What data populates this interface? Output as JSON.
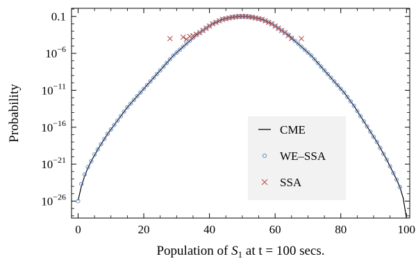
{
  "chart_data": {
    "type": "scatter",
    "xlabel": {
      "prefix": "Population of ",
      "var": "S",
      "sub": "1",
      "suffix": " at t = 100 secs."
    },
    "ylabel": "Probability",
    "x_range": [
      -2,
      101
    ],
    "y_scale": "log",
    "y_range_log10": [
      -28.3,
      0.1
    ],
    "x_ticks": [
      0,
      20,
      40,
      60,
      80,
      100
    ],
    "y_ticks": [
      {
        "log10": -1,
        "label": "0.1"
      },
      {
        "log10": -6,
        "label": "10",
        "exp": "−6"
      },
      {
        "log10": -11,
        "label": "10",
        "exp": "−11"
      },
      {
        "log10": -16,
        "label": "10",
        "exp": "−16"
      },
      {
        "log10": -21,
        "label": "10",
        "exp": "−21"
      },
      {
        "log10": -26,
        "label": "10",
        "exp": "−26"
      }
    ],
    "grid": false,
    "legend_position": "right-center",
    "series": [
      {
        "name": "CME",
        "kind": "line",
        "color": "#000000",
        "x": [
          0,
          1,
          2,
          3,
          4,
          5,
          6,
          7,
          8,
          9,
          10,
          11,
          12,
          13,
          14,
          15,
          16,
          17,
          18,
          19,
          20,
          21,
          22,
          23,
          24,
          25,
          26,
          27,
          28,
          29,
          30,
          31,
          32,
          33,
          34,
          35,
          36,
          37,
          38,
          39,
          40,
          41,
          42,
          43,
          44,
          45,
          46,
          47,
          48,
          49,
          50,
          51,
          52,
          53,
          54,
          55,
          56,
          57,
          58,
          59,
          60,
          61,
          62,
          63,
          64,
          65,
          66,
          67,
          68,
          69,
          70,
          71,
          72,
          73,
          74,
          75,
          76,
          77,
          78,
          79,
          80,
          81,
          82,
          83,
          84,
          85,
          86,
          87,
          88,
          89,
          90,
          91,
          92,
          93,
          94,
          95,
          96,
          97,
          98,
          99,
          100
        ],
        "log10_prob": [
          -25.9,
          -24.0,
          -22.6,
          -21.5,
          -20.6,
          -19.8,
          -19.0,
          -18.3,
          -17.6,
          -16.9,
          -16.3,
          -15.7,
          -15.1,
          -14.5,
          -13.9,
          -13.3,
          -12.8,
          -12.3,
          -11.8,
          -11.3,
          -10.8,
          -10.3,
          -9.8,
          -9.3,
          -8.8,
          -8.3,
          -7.8,
          -7.3,
          -6.8,
          -6.3,
          -5.9,
          -5.5,
          -5.1,
          -4.7,
          -4.3,
          -3.9,
          -3.5,
          -3.2,
          -2.9,
          -2.6,
          -2.3,
          -2.0,
          -1.8,
          -1.6,
          -1.4,
          -1.3,
          -1.2,
          -1.1,
          -1.05,
          -1.0,
          -1.0,
          -1.0,
          -1.05,
          -1.1,
          -1.2,
          -1.3,
          -1.4,
          -1.6,
          -1.8,
          -2.0,
          -2.3,
          -2.6,
          -2.9,
          -3.2,
          -3.5,
          -3.9,
          -4.3,
          -4.7,
          -5.1,
          -5.5,
          -5.9,
          -6.3,
          -6.8,
          -7.3,
          -7.8,
          -8.3,
          -8.8,
          -9.3,
          -9.8,
          -10.3,
          -10.8,
          -11.3,
          -11.9,
          -12.5,
          -13.1,
          -13.8,
          -14.5,
          -15.2,
          -15.9,
          -16.6,
          -17.3,
          -18.0,
          -18.8,
          -19.6,
          -20.4,
          -21.3,
          -22.2,
          -23.1,
          -24.1,
          -25.6,
          -28.3
        ]
      },
      {
        "name": "WE–SSA",
        "kind": "open-circle",
        "color": "#6a8fc8",
        "x": [
          0,
          1,
          2,
          3,
          4,
          5,
          6,
          7,
          8,
          9,
          10,
          11,
          12,
          13,
          14,
          15,
          16,
          17,
          18,
          19,
          20,
          21,
          22,
          23,
          24,
          25,
          26,
          27,
          28,
          29,
          30,
          31,
          32,
          33,
          34,
          35,
          36,
          37,
          38,
          39,
          40,
          41,
          42,
          43,
          44,
          45,
          46,
          47,
          48,
          49,
          50,
          51,
          52,
          53,
          54,
          55,
          56,
          57,
          58,
          59,
          60,
          61,
          62,
          63,
          64,
          65,
          66,
          67,
          68,
          69,
          70,
          71,
          72,
          73,
          74,
          75,
          76,
          77,
          78,
          79,
          80,
          81,
          82,
          83,
          84,
          85,
          86,
          87,
          88,
          89,
          90,
          91,
          92,
          93,
          94,
          95,
          96,
          97,
          98
        ],
        "log10_prob": [
          -26.0,
          -23.7,
          -22.4,
          -21.4,
          -20.6,
          -19.7,
          -19.0,
          -18.3,
          -17.6,
          -16.9,
          -16.3,
          -15.7,
          -15.1,
          -14.5,
          -13.9,
          -13.3,
          -12.8,
          -12.3,
          -11.8,
          -11.3,
          -10.8,
          -10.3,
          -9.8,
          -9.3,
          -8.8,
          -8.3,
          -7.8,
          -7.3,
          -6.8,
          -6.3,
          -5.9,
          -5.5,
          -5.1,
          -4.7,
          -4.3,
          -3.9,
          -3.5,
          -3.2,
          -2.9,
          -2.6,
          -2.3,
          -2.0,
          -1.8,
          -1.6,
          -1.4,
          -1.3,
          -1.2,
          -1.1,
          -1.05,
          -1.0,
          -1.0,
          -1.0,
          -1.05,
          -1.1,
          -1.2,
          -1.3,
          -1.4,
          -1.6,
          -1.8,
          -2.0,
          -2.3,
          -2.6,
          -2.9,
          -3.2,
          -3.5,
          -3.9,
          -4.3,
          -4.7,
          -5.1,
          -5.5,
          -5.9,
          -6.3,
          -6.8,
          -7.3,
          -7.8,
          -8.3,
          -8.8,
          -9.3,
          -9.8,
          -10.3,
          -10.8,
          -11.3,
          -11.9,
          -12.5,
          -13.1,
          -13.8,
          -14.5,
          -15.2,
          -15.9,
          -16.6,
          -17.3,
          -18.0,
          -18.8,
          -19.6,
          -20.4,
          -21.3,
          -22.2,
          -23.1,
          -24.1
        ]
      },
      {
        "name": "SSA",
        "kind": "x-marker",
        "color": "#b5524f",
        "x": [
          28,
          32,
          33,
          34,
          35,
          36,
          37,
          38,
          39,
          40,
          41,
          42,
          43,
          44,
          45,
          46,
          47,
          48,
          49,
          50,
          51,
          52,
          53,
          54,
          55,
          56,
          57,
          58,
          59,
          60,
          61,
          62,
          63,
          64,
          65,
          68
        ],
        "log10_prob": [
          -4.0,
          -3.8,
          -4.1,
          -3.7,
          -3.6,
          -3.4,
          -3.2,
          -2.9,
          -2.6,
          -2.3,
          -2.0,
          -1.8,
          -1.6,
          -1.4,
          -1.3,
          -1.2,
          -1.1,
          -1.05,
          -1.0,
          -1.0,
          -1.0,
          -1.05,
          -1.1,
          -1.2,
          -1.3,
          -1.4,
          -1.6,
          -1.8,
          -2.0,
          -2.3,
          -2.6,
          -2.9,
          -3.2,
          -3.6,
          -4.0,
          -4.0
        ]
      }
    ],
    "legend": {
      "bg": "#f2f2f2"
    }
  }
}
